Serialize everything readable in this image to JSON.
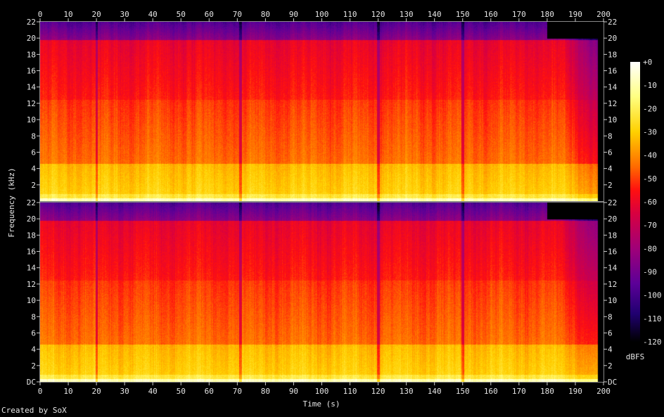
{
  "credit": "Created by SoX",
  "chart_data": {
    "type": "heatmap",
    "subtype": "spectrogram",
    "xlabel": "Time (s)",
    "ylabel": "Frequency (kHz)",
    "xlim": [
      0,
      200
    ],
    "x_ticks": [
      "0",
      "10",
      "20",
      "30",
      "40",
      "50",
      "60",
      "70",
      "80",
      "90",
      "100",
      "110",
      "120",
      "130",
      "140",
      "150",
      "160",
      "170",
      "180",
      "190",
      "200"
    ],
    "ylim_khz": [
      0,
      22
    ],
    "y_ticks_top_panel": [
      "2",
      "4",
      "6",
      "8",
      "10",
      "12",
      "14",
      "16",
      "18",
      "20",
      "22"
    ],
    "y_ticks_bottom_panel": [
      "DC",
      "2",
      "4",
      "6",
      "8",
      "10",
      "12",
      "14",
      "16",
      "18",
      "20",
      "22"
    ],
    "channels": [
      {
        "channel": 1,
        "spectrum_end_s": 198,
        "upper_band_cutoff_after_s": 180,
        "cutoff_khz": 20
      },
      {
        "channel": 2,
        "spectrum_end_s": 198,
        "upper_band_cutoff_after_s": 180,
        "cutoff_khz": 20
      }
    ],
    "dropout_lines_s": [
      20,
      71,
      120,
      150
    ],
    "colorbar": {
      "unit_label": "dBFS",
      "range_db": [
        -120,
        0
      ],
      "ticks": [
        "+0",
        "-10",
        "-20",
        "-30",
        "-40",
        "-50",
        "-60",
        "-70",
        "-80",
        "-90",
        "-100",
        "-110",
        "-120"
      ],
      "stops": [
        {
          "db": 0,
          "color": "#ffffff"
        },
        {
          "db": -15,
          "color": "#ffff80"
        },
        {
          "db": -30,
          "color": "#ffd000"
        },
        {
          "db": -45,
          "color": "#ff6a00"
        },
        {
          "db": -55,
          "color": "#ff1010"
        },
        {
          "db": -65,
          "color": "#d80040"
        },
        {
          "db": -80,
          "color": "#a00078"
        },
        {
          "db": -95,
          "color": "#5c0098"
        },
        {
          "db": -108,
          "color": "#200070"
        },
        {
          "db": -120,
          "color": "#000000"
        }
      ]
    }
  }
}
